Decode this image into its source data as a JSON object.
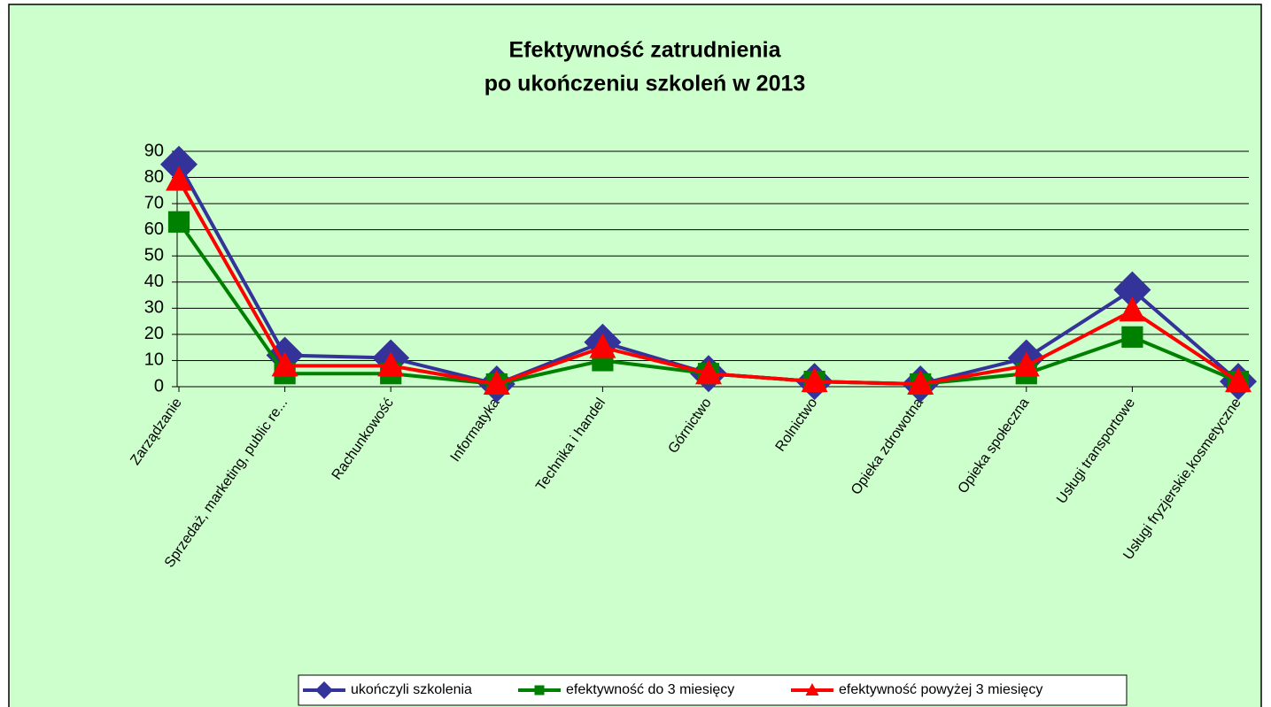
{
  "chart_data": {
    "type": "line",
    "title": [
      "Efektywność zatrudnienia",
      "po ukończeniu szkoleń w 2013"
    ],
    "categories": [
      "Zarządzanie",
      "Sprzedaż, marketing, public re...",
      "Rachunkowość",
      "Informatyka",
      "Technika i handel",
      "Górnictwo",
      "Rolnictwo",
      "Opieka zdrowotna",
      "Opieka społeczna",
      "Usługi transportowe",
      "Usługi fryzjerskie,kosmetyczne"
    ],
    "series": [
      {
        "name": "ukończyli szkolenia",
        "color": "#333399",
        "marker": "diamond",
        "values": [
          85,
          12,
          11,
          1,
          17,
          5,
          2,
          1,
          11,
          37,
          2
        ]
      },
      {
        "name": "efektywność do 3 miesięcy",
        "color": "#008000",
        "marker": "square",
        "values": [
          63,
          5,
          5,
          1,
          10,
          5,
          2,
          1,
          5,
          19,
          2
        ]
      },
      {
        "name": "efektywność powyżej 3 miesięcy",
        "color": "#ff0000",
        "marker": "triangle",
        "values": [
          79,
          8,
          8,
          1,
          15,
          5,
          2,
          1,
          8,
          29,
          2
        ]
      }
    ],
    "ylim": [
      0,
      90
    ],
    "yticks": [
      0,
      10,
      20,
      30,
      40,
      50,
      60,
      70,
      80,
      90
    ],
    "grid": true,
    "legend": "bottom"
  }
}
